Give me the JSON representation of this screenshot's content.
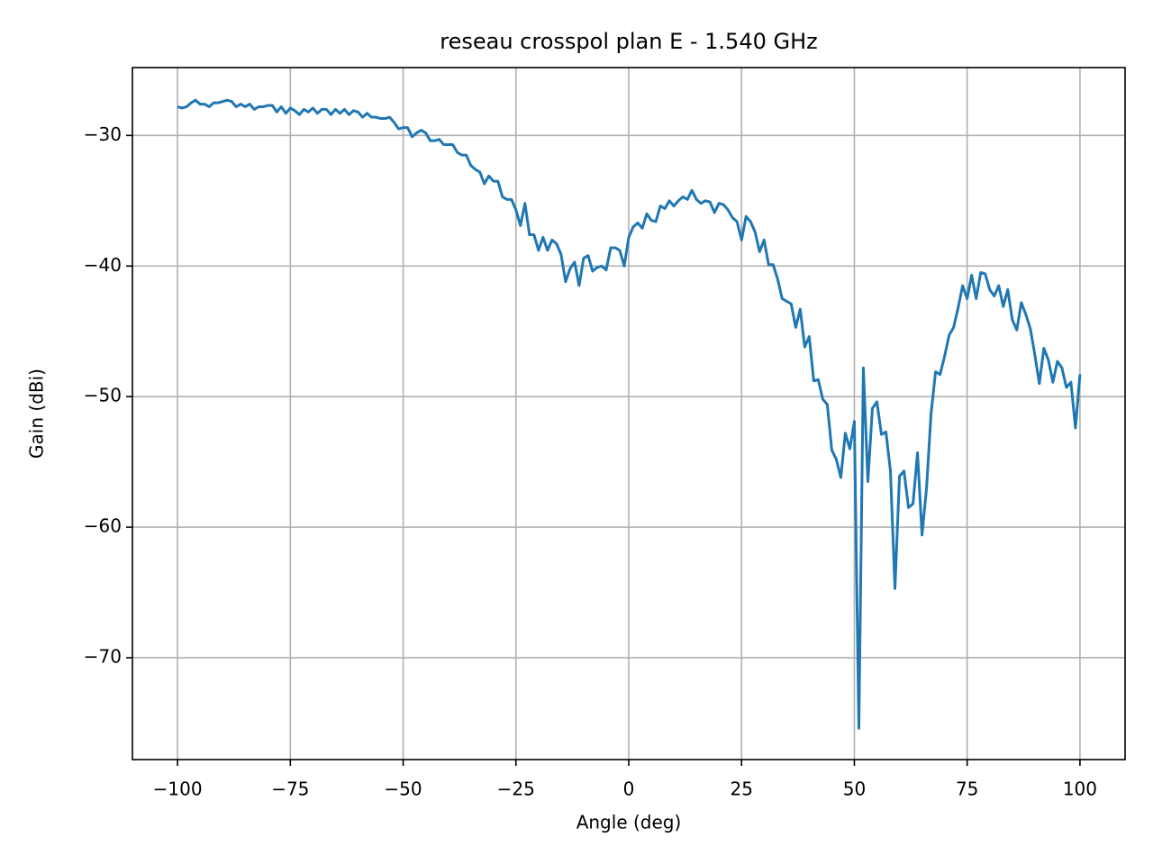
{
  "chart_data": {
    "type": "line",
    "title": "reseau crosspol plan E - 1.540 GHz",
    "x_label": "Angle (deg)",
    "y_label": "Gain (dBi)",
    "xlim": [
      -110,
      110
    ],
    "ylim": [
      -77.8,
      -24.8
    ],
    "xticks": [
      {
        "value": -100,
        "label": "−100"
      },
      {
        "value": -75,
        "label": "−75"
      },
      {
        "value": -50,
        "label": "−50"
      },
      {
        "value": -25,
        "label": "−25"
      },
      0,
      25,
      50,
      75,
      100
    ],
    "yticks": [
      {
        "value": -70,
        "label": "−70"
      },
      {
        "value": -60,
        "label": "−60"
      },
      {
        "value": -50,
        "label": "−50"
      },
      {
        "value": -40,
        "label": "−40"
      },
      {
        "value": -30,
        "label": "−30"
      }
    ],
    "grid": true,
    "x": [
      -100,
      -99,
      -98,
      -97,
      -96,
      -95,
      -94,
      -93,
      -92,
      -91,
      -90,
      -89,
      -88,
      -87,
      -86,
      -85,
      -84,
      -83,
      -82,
      -81,
      -80,
      -79,
      -78,
      -77,
      -76,
      -75,
      -74,
      -73,
      -72,
      -71,
      -70,
      -69,
      -68,
      -67,
      -66,
      -65,
      -64,
      -63,
      -62,
      -61,
      -60,
      -59,
      -58,
      -57,
      -56,
      -55,
      -54,
      -53,
      -52,
      -51,
      -50,
      -49,
      -48,
      -47,
      -46,
      -45,
      -44,
      -43,
      -42,
      -41,
      -40,
      -39,
      -38,
      -37,
      -36,
      -35,
      -34,
      -33,
      -32,
      -31,
      -30,
      -29,
      -28,
      -27,
      -26,
      -25,
      -24,
      -23,
      -22,
      -21,
      -20,
      -19,
      -18,
      -17,
      -16,
      -15,
      -14,
      -13,
      -12,
      -11,
      -10,
      -9,
      -8,
      -7,
      -6,
      -5,
      -4,
      -3,
      -2,
      -1,
      0,
      1,
      2,
      3,
      4,
      5,
      6,
      7,
      8,
      9,
      10,
      11,
      12,
      13,
      14,
      15,
      16,
      17,
      18,
      19,
      20,
      21,
      22,
      23,
      24,
      25,
      26,
      27,
      28,
      29,
      30,
      31,
      32,
      33,
      34,
      35,
      36,
      37,
      38,
      39,
      40,
      41,
      42,
      43,
      44,
      45,
      46,
      47,
      48,
      49,
      50,
      51,
      52,
      53,
      54,
      55,
      56,
      57,
      58,
      59,
      60,
      61,
      62,
      63,
      64,
      65,
      66,
      67,
      68,
      69,
      70,
      71,
      72,
      73,
      74,
      75,
      76,
      77,
      78,
      79,
      80,
      81,
      82,
      83,
      84,
      85,
      86,
      87,
      88,
      89,
      90,
      91,
      92,
      93,
      94,
      95,
      96,
      97,
      98,
      99,
      100
    ],
    "series": [
      {
        "color": "#1f77b4",
        "values": [
          -27.8,
          -27.9,
          -27.8,
          -27.5,
          -27.3,
          -27.6,
          -27.6,
          -27.8,
          -27.5,
          -27.5,
          -27.4,
          -27.3,
          -27.4,
          -27.8,
          -27.6,
          -27.8,
          -27.6,
          -28.0,
          -27.8,
          -27.8,
          -27.7,
          -27.7,
          -28.2,
          -27.8,
          -28.3,
          -27.9,
          -28.1,
          -28.4,
          -28.0,
          -28.2,
          -27.9,
          -28.3,
          -28.0,
          -28.0,
          -28.4,
          -28.0,
          -28.3,
          -28.0,
          -28.4,
          -28.1,
          -28.2,
          -28.6,
          -28.3,
          -28.6,
          -28.6,
          -28.7,
          -28.7,
          -28.6,
          -29.0,
          -29.5,
          -29.4,
          -29.4,
          -30.1,
          -29.8,
          -29.6,
          -29.8,
          -30.4,
          -30.4,
          -30.3,
          -30.7,
          -30.7,
          -30.7,
          -31.3,
          -31.5,
          -31.5,
          -32.3,
          -32.6,
          -32.8,
          -33.7,
          -33.1,
          -33.5,
          -33.5,
          -34.7,
          -34.9,
          -34.9,
          -35.7,
          -36.9,
          -35.2,
          -37.6,
          -37.6,
          -38.8,
          -37.8,
          -38.8,
          -38.0,
          -38.3,
          -39.1,
          -41.2,
          -40.2,
          -39.7,
          -41.5,
          -39.4,
          -39.2,
          -40.4,
          -40.1,
          -40.0,
          -40.3,
          -38.6,
          -38.6,
          -38.8,
          -40.0,
          -37.8,
          -37.0,
          -36.7,
          -37.1,
          -36.0,
          -36.5,
          -36.6,
          -35.4,
          -35.6,
          -35.0,
          -35.4,
          -35.0,
          -34.7,
          -34.9,
          -34.2,
          -34.9,
          -35.2,
          -35.0,
          -35.1,
          -35.9,
          -35.2,
          -35.3,
          -35.7,
          -36.3,
          -36.6,
          -38.0,
          -36.2,
          -36.6,
          -37.4,
          -38.9,
          -38.0,
          -39.9,
          -39.9,
          -41.0,
          -42.5,
          -42.7,
          -42.9,
          -44.7,
          -43.3,
          -46.2,
          -45.4,
          -48.8,
          -48.7,
          -50.2,
          -50.6,
          -54.1,
          -54.8,
          -56.2,
          -52.8,
          -54.0,
          -51.9,
          -75.4,
          -47.8,
          -56.5,
          -50.9,
          -50.4,
          -52.9,
          -52.7,
          -55.7,
          -64.7,
          -56.1,
          -55.7,
          -58.5,
          -58.2,
          -54.3,
          -60.6,
          -57.0,
          -51.3,
          -48.1,
          -48.3,
          -46.9,
          -45.3,
          -44.7,
          -43.2,
          -41.5,
          -42.5,
          -40.7,
          -42.5,
          -40.5,
          -40.6,
          -41.8,
          -42.3,
          -41.5,
          -43.1,
          -41.8,
          -44.1,
          -44.9,
          -42.8,
          -43.7,
          -44.8,
          -46.8,
          -49.0,
          -46.3,
          -47.2,
          -48.9,
          -47.3,
          -47.8,
          -49.3,
          -48.9,
          -52.4,
          -48.3
        ]
      }
    ]
  }
}
